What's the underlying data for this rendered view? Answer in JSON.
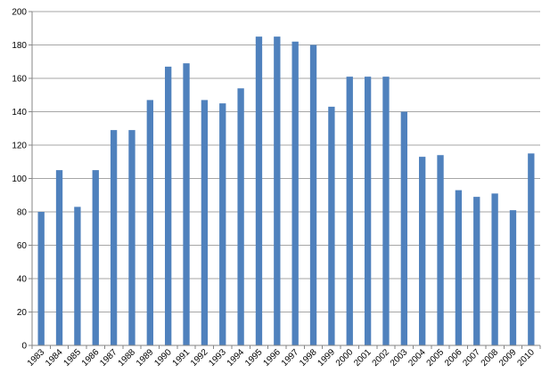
{
  "chart_data": {
    "type": "bar",
    "title": "",
    "xlabel": "",
    "ylabel": "",
    "categories": [
      "1983",
      "1984",
      "1985",
      "1986",
      "1987",
      "1988",
      "1989",
      "1990",
      "1991",
      "1992",
      "1993",
      "1994",
      "1995",
      "1996",
      "1997",
      "1998",
      "1999",
      "2000",
      "2001",
      "2002",
      "2003",
      "2004",
      "2005",
      "2006",
      "2007",
      "2008",
      "2009",
      "2010"
    ],
    "series": [
      {
        "values": [
          80,
          105,
          83,
          105,
          129,
          129,
          147,
          167,
          169,
          147,
          145,
          154,
          185,
          185,
          182,
          180,
          143,
          161,
          161,
          161,
          140,
          113,
          114,
          93,
          89,
          91,
          81,
          115
        ]
      }
    ],
    "ylim": [
      0,
      200
    ],
    "yticks": [
      0,
      20,
      40,
      60,
      80,
      100,
      120,
      140,
      160,
      180,
      200
    ],
    "grid": true,
    "legend": "none",
    "bar_color": "#4f81bd",
    "grid_color": "#a6a6a6",
    "axis_color": "#868686"
  }
}
